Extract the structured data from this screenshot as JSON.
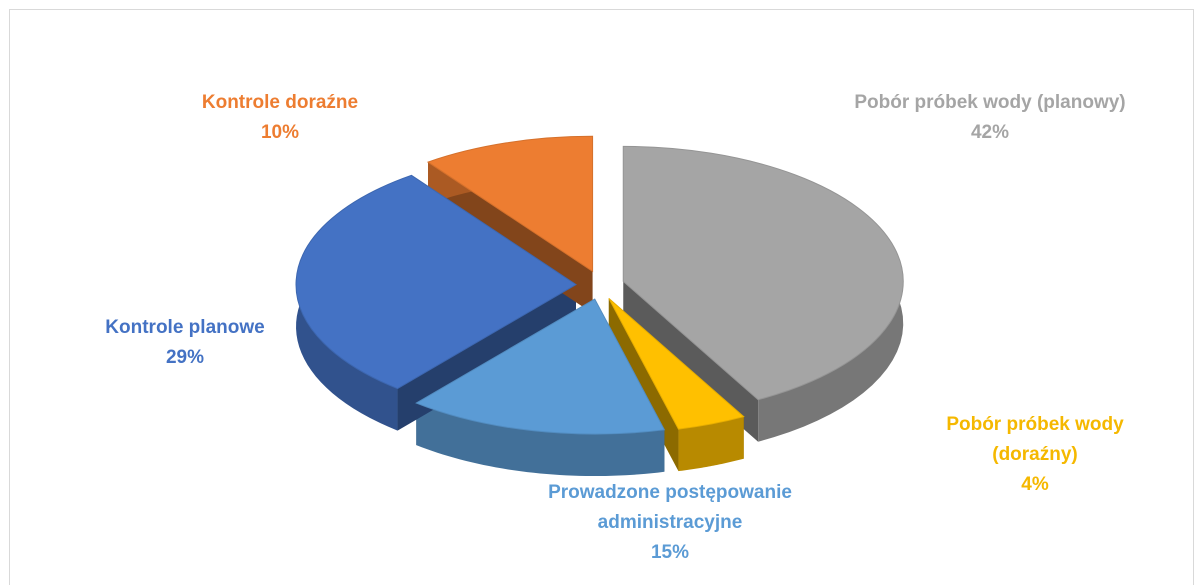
{
  "chart_data": {
    "type": "pie",
    "categories": [
      "Pobór próbek wody (planowy)",
      "Pobór próbek wody (doraźny)",
      "Prowadzone postępowanie administracyjne",
      "Kontrole planowe",
      "Kontrole doraźne"
    ],
    "values": [
      42,
      4,
      15,
      29,
      10
    ],
    "value_labels": [
      "42%",
      "4%",
      "15%",
      "29%",
      "10%"
    ],
    "colors": [
      "#a5a5a5",
      "#ffc000",
      "#5b9bd5",
      "#4472c4",
      "#ed7d31"
    ]
  }
}
